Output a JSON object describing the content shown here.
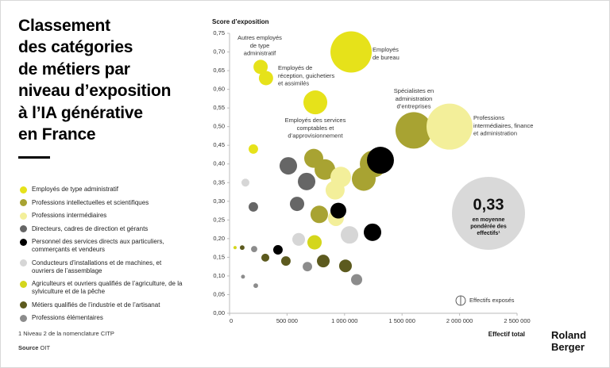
{
  "chart_data": {
    "type": "bubble",
    "title": [
      "Classement",
      "des catégories",
      "de métiers par",
      "niveau d’exposition",
      "à l’IA générative",
      "en France"
    ],
    "y_axis_title": "Score d’exposition",
    "x_axis_title": "Effectif total",
    "xlim": [
      0,
      2500000
    ],
    "ylim": [
      0,
      0.75
    ],
    "xticks": [
      0,
      {
        "value": 500000,
        "label": "500 000"
      },
      {
        "value": 1000000,
        "label": "1 000 000"
      },
      {
        "value": 1500000,
        "label": "1 500 000"
      },
      {
        "value": 2000000,
        "label": "2 000 000"
      },
      {
        "value": 2500000,
        "label": "2 500 000"
      }
    ],
    "yticks": [
      {
        "value": 0,
        "label": "0,00"
      },
      {
        "value": 0.05,
        "label": "0,05"
      },
      {
        "value": 0.1,
        "label": "0,10"
      },
      {
        "value": 0.15,
        "label": "0,15"
      },
      {
        "value": 0.2,
        "label": "0,20"
      },
      {
        "value": 0.25,
        "label": "0,25"
      },
      {
        "value": 0.3,
        "label": "0,30"
      },
      {
        "value": 0.35,
        "label": "0,35"
      },
      {
        "value": 0.4,
        "label": "0,40"
      },
      {
        "value": 0.45,
        "label": "0,45"
      },
      {
        "value": 0.5,
        "label": "0,50"
      },
      {
        "value": 0.55,
        "label": "0,55"
      },
      {
        "value": 0.6,
        "label": "0,60"
      },
      {
        "value": 0.65,
        "label": "0,65"
      },
      {
        "value": 0.7,
        "label": "0,70"
      },
      {
        "value": 0.75,
        "label": "0,75"
      }
    ],
    "series": [
      {
        "name": "Employés de type administratif",
        "color": "#e6e21a",
        "x": [
          270000,
          317000,
          746000,
          1057000,
          207000
        ],
        "values": [
          0.66,
          0.63,
          0.565,
          0.7,
          0.44
        ],
        "sizes": [
          93000,
          93000,
          260000,
          780000,
          41000
        ]
      },
      {
        "name": "Professions intellectuelles et scientifiques",
        "color": "#a8a332",
        "x": [
          1602000,
          1250000,
          1167000,
          732000,
          829000,
          780000
        ],
        "values": [
          0.49,
          0.4,
          0.36,
          0.415,
          0.385,
          0.265
        ],
        "sizes": [
          610000,
          333000,
          260000,
          166000,
          195000,
          140000
        ]
      },
      {
        "name": "Professions intermédiaires",
        "color": "#f3ef9a",
        "x": [
          1913000,
          967000,
          918000,
          925000
        ],
        "values": [
          0.5,
          0.365,
          0.33,
          0.255
        ],
        "sizes": [
          970000,
          195000,
          166000,
          115000
        ]
      },
      {
        "name": "Directeurs, cadres de direction et gérants",
        "color": "#666666",
        "x": [
          511000,
          670000,
          587000,
          207000
        ],
        "values": [
          0.395,
          0.353,
          0.293,
          0.285
        ],
        "sizes": [
          140000,
          140000,
          94000,
          41000
        ]
      },
      {
        "name": "Personnel des services directs aux particuliers, commerçants et vendeurs",
        "color": "#000000",
        "x": [
          1312000,
          946000,
          1243000,
          421000
        ],
        "values": [
          0.41,
          0.275,
          0.217,
          0.17
        ],
        "sizes": [
          333000,
          115000,
          140000,
          41000
        ]
      },
      {
        "name": "Conducteurs d’installations et de machines, et ouvriers de l’assemblage",
        "color": "#d6d6d6",
        "x": [
          138000,
          601000,
          1043000
        ],
        "values": [
          0.35,
          0.198,
          0.21
        ],
        "sizes": [
          29000,
          74000,
          140000
        ]
      },
      {
        "name": "Agriculteurs et ouvriers qualifiés de l’agriculture, de la sylviculture et de la pêche",
        "color": "#d4d61c",
        "x": [
          739000,
          48000
        ],
        "values": [
          0.19,
          0.176
        ],
        "sizes": [
          94000,
          5000
        ]
      },
      {
        "name": "Métiers qualifiés de l’industrie et de l’artisanat",
        "color": "#5c5a1e",
        "x": [
          110000,
          311000,
          490000,
          815000,
          1008000
        ],
        "values": [
          0.176,
          0.149,
          0.14,
          0.14,
          0.127
        ],
        "sizes": [
          10000,
          29000,
          41000,
          74000,
          74000
        ]
      },
      {
        "name": "Professions élémentaires",
        "color": "#8c8c8c",
        "x": [
          214000,
          677000,
          1105000,
          117000,
          228000
        ],
        "values": [
          0.172,
          0.125,
          0.09,
          0.098,
          0.074
        ],
        "sizes": [
          18000,
          41000,
          57000,
          7000,
          10000
        ]
      }
    ],
    "annotations": [
      [
        "Autres employés",
        "de type",
        "administratif"
      ],
      [
        "Employés de",
        "réception, guichetiers",
        "et assimilés"
      ],
      [
        "Employés",
        "de bureau"
      ],
      [
        "Spécialistes en",
        "administration",
        "d’entreprises"
      ],
      [
        "Professions",
        "intermédiaires, finance",
        "et administration"
      ],
      [
        "Employés des services",
        "comptables et",
        "d’approvisionnement"
      ]
    ],
    "average": {
      "value": 0.33,
      "label": "0,33",
      "text": [
        "en moyenne",
        "pondérée des",
        "effectifs¹"
      ]
    },
    "size_legend": "Effectifs exposés",
    "footnote": "1 Niveau 2 de la nomenclature CITP",
    "source": {
      "label": "Source",
      "text": "OIT"
    },
    "logo": [
      "Roland",
      "Berger"
    ]
  }
}
